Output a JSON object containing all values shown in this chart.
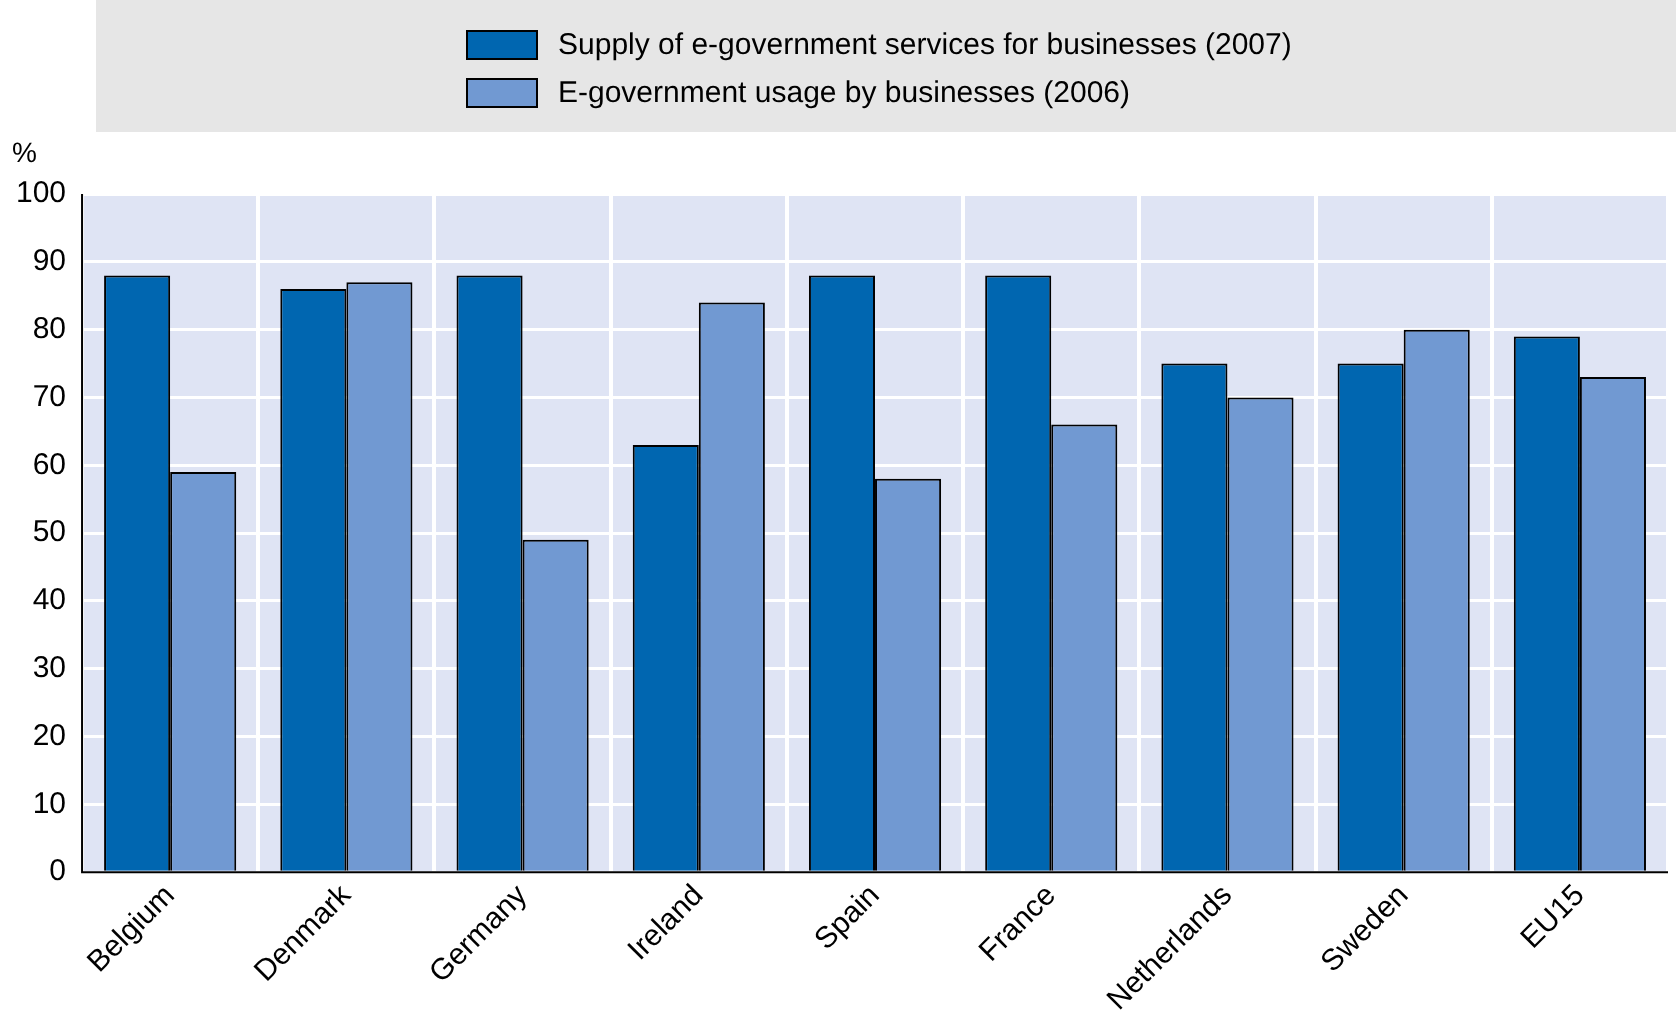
{
  "chart_data": {
    "type": "bar",
    "ylabel": "%",
    "categories": [
      "Belgium",
      "Denmark",
      "Germany",
      "Ireland",
      "Spain",
      "France",
      "Netherlands",
      "Sweden",
      "EU15"
    ],
    "series": [
      {
        "name": "Supply of e-government services for businesses (2007)",
        "color": "#0066b0",
        "values": [
          88,
          86,
          88,
          63,
          88,
          88,
          75,
          75,
          79
        ]
      },
      {
        "name": "E-government usage by businesses (2006)",
        "color": "#7199d2",
        "values": [
          59,
          87,
          49,
          84,
          58,
          66,
          70,
          80,
          73
        ]
      }
    ],
    "ylim": [
      0,
      100
    ],
    "yticks": [
      0,
      10,
      20,
      30,
      40,
      50,
      60,
      70,
      80,
      90,
      100
    ],
    "grid": true,
    "legend": "top"
  }
}
